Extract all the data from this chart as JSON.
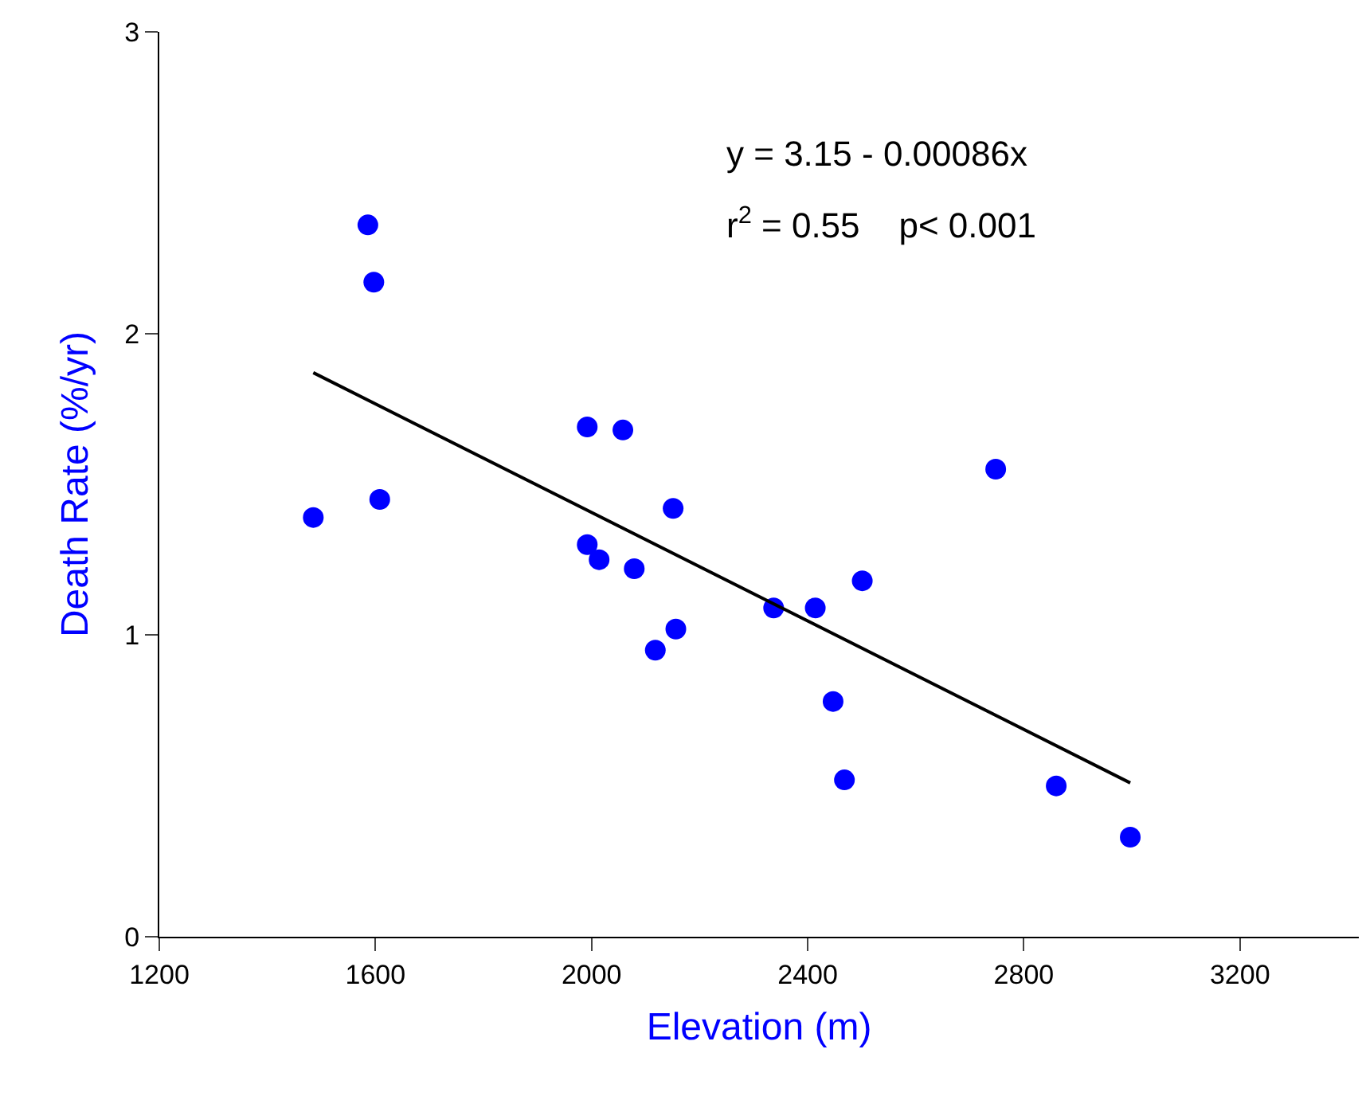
{
  "chart_data": {
    "type": "scatter",
    "xlabel": "Elevation (m)",
    "ylabel": "Death Rate (%/yr)",
    "x": [
      1485,
      1586,
      1597,
      1608,
      1992,
      2058,
      1992,
      2014,
      2151,
      2079,
      2118,
      2156,
      2337,
      2414,
      2501,
      2447,
      2468,
      2748,
      2860,
      2997
    ],
    "series": [
      {
        "marker": "circle",
        "color": "#0000ff",
        "values": [
          1.39,
          2.36,
          2.17,
          1.45,
          1.69,
          1.68,
          1.3,
          1.25,
          1.42,
          1.22,
          0.95,
          1.02,
          1.09,
          1.09,
          1.18,
          0.78,
          0.52,
          1.55,
          0.5,
          0.33
        ]
      },
      {
        "type": "line",
        "marker": "none",
        "color": "#000000",
        "x": [
          1485,
          2997
        ],
        "values": [
          1.87,
          0.51
        ]
      }
    ],
    "annotations": [
      "y = 3.15 - 0.00086x",
      "r$^{2}$ = 0.55    p< 0.001"
    ],
    "xlim": [
      1200,
      3420
    ],
    "xticks": [
      1200,
      1600,
      2000,
      2400,
      2800,
      3200
    ],
    "ylim": [
      0,
      3
    ],
    "yticks": [
      0,
      1,
      2,
      3
    ],
    "legend": false
  }
}
